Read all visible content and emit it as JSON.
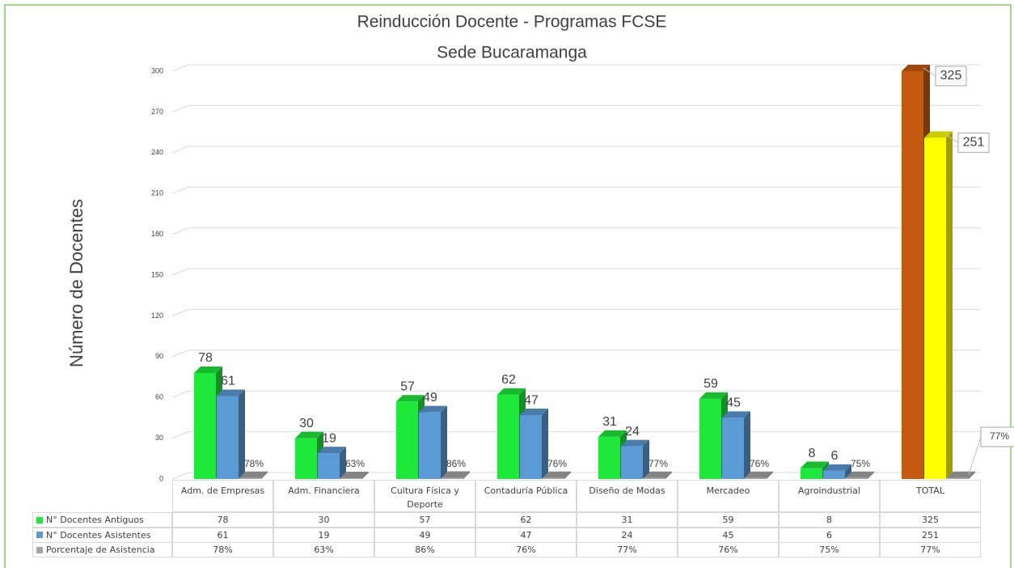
{
  "chart_data": {
    "type": "bar3d",
    "title": "Reinducción Docente - Programas FCSE",
    "subtitle": "Sede Bucaramanga",
    "y_label": "Número de Docentes",
    "categories": [
      "Adm. de Empresas",
      "Adm. Financiera",
      "Cultura Física y Deporte",
      "Contaduría Pública",
      "Diseño de Modas",
      "Mercadeo",
      "Agroindustrial",
      "TOTAL"
    ],
    "series": [
      {
        "name": "N° Docentes Antiguos",
        "color": "#1ee83a",
        "colors": [
          "#1ee83a",
          "#1ee83a",
          "#1ee83a",
          "#1ee83a",
          "#1ee83a",
          "#1ee83a",
          "#1ee83a",
          "#c55a11"
        ],
        "values": [
          78,
          30,
          57,
          62,
          31,
          59,
          8,
          325
        ]
      },
      {
        "name": "N° Docentes Asistentes",
        "color": "#5b9bd5",
        "colors": [
          "#5b9bd5",
          "#5b9bd5",
          "#5b9bd5",
          "#5b9bd5",
          "#5b9bd5",
          "#5b9bd5",
          "#5b9bd5",
          "#ffff00"
        ],
        "values": [
          61,
          19,
          49,
          47,
          24,
          45,
          6,
          251
        ]
      },
      {
        "name": "Porcentaje de Asistencia",
        "color": "#a5a5a5",
        "colors": [
          "#a5a5a5",
          "#a5a5a5",
          "#a5a5a5",
          "#a5a5a5",
          "#a5a5a5",
          "#a5a5a5",
          "#a5a5a5",
          "#a5a5a5"
        ],
        "values": [
          0.78,
          0.63,
          0.86,
          0.76,
          0.77,
          0.76,
          0.75,
          0.77
        ],
        "value_labels": [
          "78%",
          "63%",
          "86%",
          "76%",
          "77%",
          "76%",
          "75%",
          "77%"
        ]
      }
    ],
    "ylim": [
      0,
      300
    ],
    "yticks": [
      0,
      30,
      60,
      90,
      120,
      150,
      180,
      210,
      240,
      270,
      300
    ],
    "grid": true
  }
}
